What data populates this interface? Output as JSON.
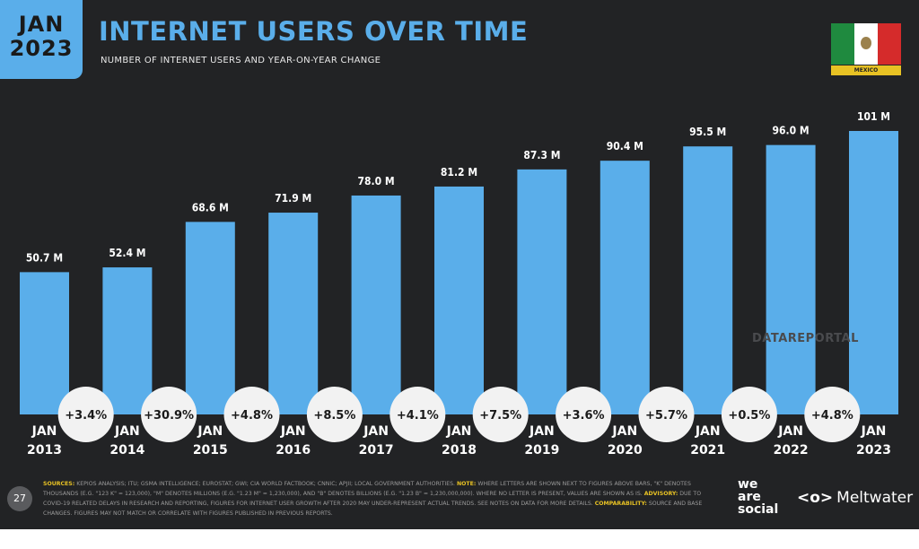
{
  "badge": {
    "month": "JAN",
    "year": "2023"
  },
  "header": {
    "title": "INTERNET USERS OVER TIME",
    "subtitle": "NUMBER OF INTERNET USERS AND YEAR-ON-YEAR CHANGE"
  },
  "country": {
    "label": "MEXICO",
    "flag_icon": "mexico-flag-icon"
  },
  "watermark": "DATAREPORTAL",
  "footer": {
    "page_number": "27",
    "sources_label": "SOURCES:",
    "sources_text": "KEPIOS ANALYSIS; ITU; GSMA INTELLIGENCE; EUROSTAT; GWI; CIA WORLD FACTBOOK; CNNIC; APJII; LOCAL GOVERNMENT AUTHORITIES.",
    "note_label": "NOTE:",
    "note_text": "WHERE LETTERS ARE SHOWN NEXT TO FIGURES ABOVE BARS, \"K\" DENOTES THOUSANDS (E.G. \"123 K\" = 123,000), \"M\" DENOTES MILLIONS (E.G. \"1.23 M\" = 1,230,000), AND \"B\" DENOTES BILLIONS (E.G. \"1.23 B\" = 1,230,000,000). WHERE NO LETTER IS PRESENT, VALUES ARE SHOWN AS IS.",
    "advisory_label": "ADVISORY:",
    "advisory_text": "DUE TO COVID-19 RELATED DELAYS IN RESEARCH AND REPORTING, FIGURES FOR INTERNET USER GROWTH AFTER 2020 MAY UNDER-REPRESENT ACTUAL TRENDS. SEE NOTES ON DATA FOR MORE DETAILS.",
    "comparability_label": "COMPARABILITY:",
    "comparability_text": "SOURCE AND BASE CHANGES. FIGURES MAY NOT MATCH OR CORRELATE WITH FIGURES PUBLISHED IN PREVIOUS REPORTS.",
    "brand_we_are_social": [
      "we",
      "are",
      "social"
    ],
    "brand_meltwater": "Meltwater",
    "meltwater_icon": "meltwater-logo-icon"
  },
  "colors": {
    "bar": "#5aaeea",
    "background": "#222325",
    "accent": "#5aaeea",
    "highlight": "#e8c224"
  },
  "chart_data": {
    "type": "bar",
    "title": "INTERNET USERS OVER TIME",
    "categories_month": [
      "JAN",
      "JAN",
      "JAN",
      "JAN",
      "JAN",
      "JAN",
      "JAN",
      "JAN",
      "JAN",
      "JAN",
      "JAN"
    ],
    "categories_year": [
      "2013",
      "2014",
      "2015",
      "2016",
      "2017",
      "2018",
      "2019",
      "2020",
      "2021",
      "2022",
      "2023"
    ],
    "values": [
      50.7,
      52.4,
      68.6,
      71.9,
      78.0,
      81.2,
      87.3,
      90.4,
      95.5,
      96.0,
      101
    ],
    "value_labels": [
      "50.7 M",
      "52.4 M",
      "68.6 M",
      "71.9 M",
      "78.0 M",
      "81.2 M",
      "87.3 M",
      "90.4 M",
      "95.5 M",
      "96.0 M",
      "101 M"
    ],
    "unit": "M",
    "yoy_changes": [
      "+3.4%",
      "+30.9%",
      "+4.8%",
      "+8.5%",
      "+4.1%",
      "+7.5%",
      "+3.6%",
      "+5.7%",
      "+0.5%",
      "+4.8%"
    ],
    "ylim": [
      0,
      101
    ],
    "grid": false,
    "legend": "none"
  }
}
